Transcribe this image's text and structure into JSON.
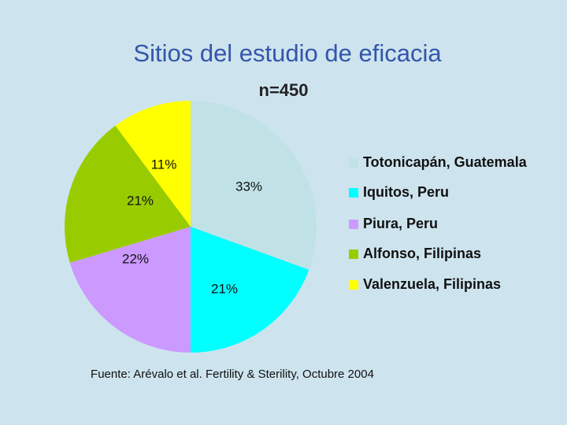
{
  "chart_data": {
    "type": "pie",
    "title": "Sitios del estudio de eficacia",
    "subtitle": "n=450",
    "source": "Fuente:  Arévalo et al.  Fertility & Sterility, Octubre 2004",
    "categories": [
      "Totonicapán, Guatemala",
      "Iquitos, Peru",
      "Piura, Peru",
      "Alfonso, Filipinas",
      "Valenzuela, Filipinas"
    ],
    "values": [
      33,
      21,
      22,
      21,
      11
    ],
    "value_labels": [
      "33%",
      "21%",
      "22%",
      "21%",
      "11%"
    ],
    "colors": [
      "#c0e2e6",
      "#00ffff",
      "#cc99ff",
      "#99cc00",
      "#ffff00"
    ],
    "legend": "right"
  }
}
